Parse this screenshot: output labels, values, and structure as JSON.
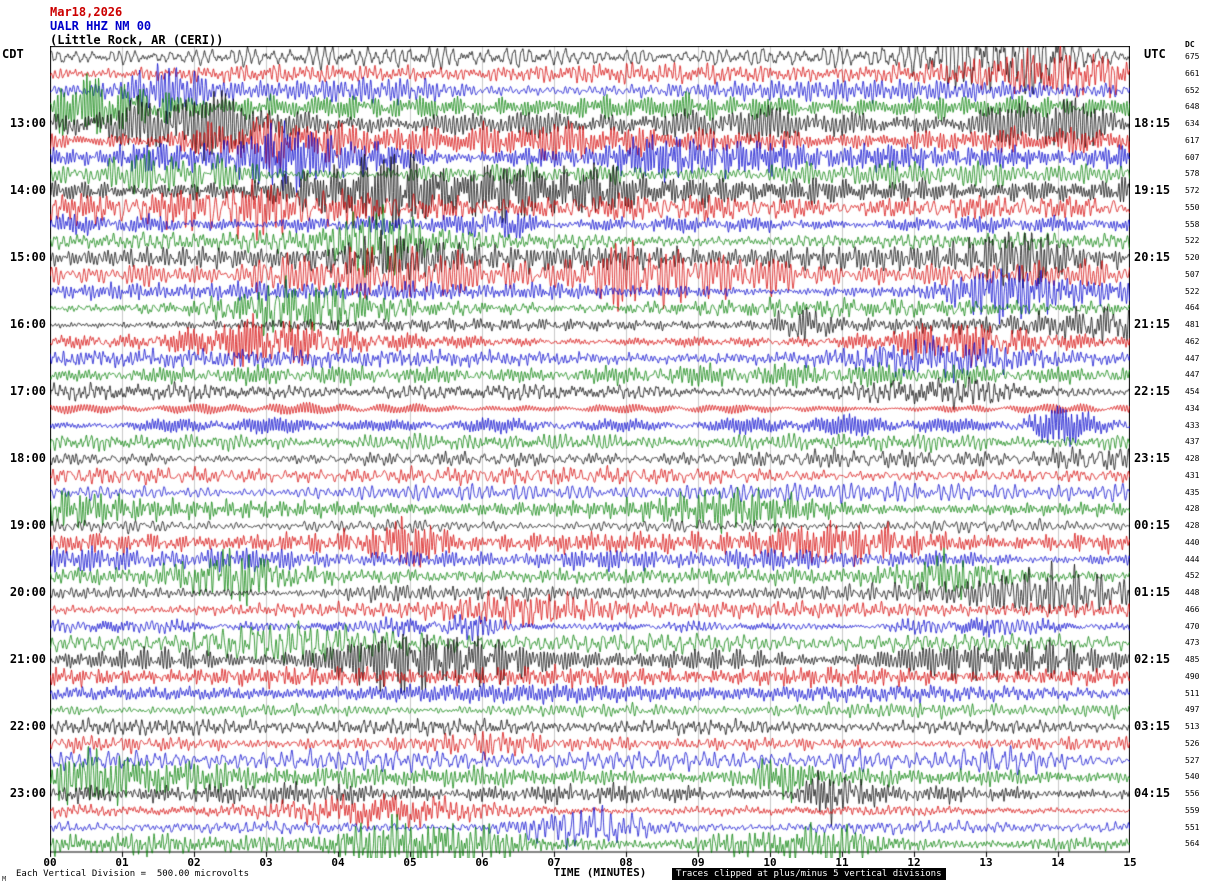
{
  "title": {
    "date": "Mar18,2026",
    "station": "UALR HHZ NM 00",
    "location": "(Little Rock, AR (CERI))",
    "date_color": "#cc0000",
    "station_color": "#0000cc",
    "location_color": "#000000"
  },
  "axes": {
    "left_timezone": "CDT",
    "right_timezone": "UTC",
    "dc_header": "DC",
    "xlabel": "TIME (MINUTES)",
    "x_ticks": [
      "00",
      "01",
      "02",
      "03",
      "04",
      "05",
      "06",
      "07",
      "08",
      "09",
      "10",
      "11",
      "12",
      "13",
      "14",
      "15"
    ]
  },
  "footer": {
    "scale_note": "Each Vertical Division =  500.00 microvolts",
    "clip_note": "Traces clipped at plus/minus 5 vertical divisions",
    "corner_mark": "M"
  },
  "chart_data": {
    "type": "line",
    "subtype": "helicorder seismogram (webicorder), 48 rows of 15 minutes each",
    "x_axis": {
      "label": "TIME (MINUTES)",
      "range_minutes": [
        0,
        15
      ],
      "tick_interval_minutes": 1
    },
    "minutes_per_row": 15,
    "microvolts_per_division": 500,
    "clip_divisions": 5,
    "row_color_cycle": [
      "#000000",
      "#d40000",
      "#0000cc",
      "#007f00"
    ],
    "grid_color": "#c8c8c8",
    "waveform": "continuous ambient seismic noise, ~1 vertical division amplitude with intermittent higher-amplitude bursts; regenerated procedurally per row",
    "rows": [
      {
        "left": "",
        "right": "",
        "dc": 675,
        "amp": 1.1
      },
      {
        "left": "",
        "right": "",
        "dc": 661,
        "amp": 1.2
      },
      {
        "left": "",
        "right": "",
        "dc": 652,
        "amp": 1.1
      },
      {
        "left": "",
        "right": "",
        "dc": 648,
        "amp": 1.2
      },
      {
        "left": "13:00",
        "right": "18:15",
        "dc": 634,
        "amp": 1.35
      },
      {
        "left": "",
        "right": "",
        "dc": 617,
        "amp": 1.3
      },
      {
        "left": "",
        "right": "",
        "dc": 607,
        "amp": 1.25
      },
      {
        "left": "",
        "right": "",
        "dc": 578,
        "amp": 1.3
      },
      {
        "left": "14:00",
        "right": "19:15",
        "dc": 572,
        "amp": 1.4
      },
      {
        "left": "",
        "right": "",
        "dc": 550,
        "amp": 1.35
      },
      {
        "left": "",
        "right": "",
        "dc": 558,
        "amp": 1.3
      },
      {
        "left": "",
        "right": "",
        "dc": 522,
        "amp": 1.25
      },
      {
        "left": "15:00",
        "right": "20:15",
        "dc": 520,
        "amp": 1.3
      },
      {
        "left": "",
        "right": "",
        "dc": 507,
        "amp": 1.2
      },
      {
        "left": "",
        "right": "",
        "dc": 522,
        "amp": 1.2
      },
      {
        "left": "",
        "right": "",
        "dc": 464,
        "amp": 1.1
      },
      {
        "left": "16:00",
        "right": "21:15",
        "dc": 481,
        "amp": 1.0
      },
      {
        "left": "",
        "right": "",
        "dc": 462,
        "amp": 0.95
      },
      {
        "left": "",
        "right": "",
        "dc": 447,
        "amp": 0.95
      },
      {
        "left": "",
        "right": "",
        "dc": 447,
        "amp": 1.0
      },
      {
        "left": "17:00",
        "right": "22:15",
        "dc": 454,
        "amp": 0.95
      },
      {
        "left": "",
        "right": "",
        "dc": 434,
        "amp": 0.9
      },
      {
        "left": "",
        "right": "",
        "dc": 433,
        "amp": 0.9
      },
      {
        "left": "",
        "right": "",
        "dc": 437,
        "amp": 0.9
      },
      {
        "left": "18:00",
        "right": "23:15",
        "dc": 428,
        "amp": 1.0
      },
      {
        "left": "",
        "right": "",
        "dc": 431,
        "amp": 0.9
      },
      {
        "left": "",
        "right": "",
        "dc": 435,
        "amp": 0.9
      },
      {
        "left": "",
        "right": "",
        "dc": 428,
        "amp": 0.9
      },
      {
        "left": "19:00",
        "right": "00:15",
        "dc": 428,
        "amp": 0.95
      },
      {
        "left": "",
        "right": "",
        "dc": 440,
        "amp": 0.85
      },
      {
        "left": "",
        "right": "",
        "dc": 444,
        "amp": 0.85
      },
      {
        "left": "",
        "right": "",
        "dc": 452,
        "amp": 0.9
      },
      {
        "left": "20:00",
        "right": "01:15",
        "dc": 448,
        "amp": 0.9
      },
      {
        "left": "",
        "right": "",
        "dc": 466,
        "amp": 0.85
      },
      {
        "left": "",
        "right": "",
        "dc": 470,
        "amp": 0.9
      },
      {
        "left": "",
        "right": "",
        "dc": 473,
        "amp": 0.9
      },
      {
        "left": "21:00",
        "right": "02:15",
        "dc": 485,
        "amp": 0.95
      },
      {
        "left": "",
        "right": "",
        "dc": 490,
        "amp": 0.9
      },
      {
        "left": "",
        "right": "",
        "dc": 511,
        "amp": 1.0
      },
      {
        "left": "",
        "right": "",
        "dc": 497,
        "amp": 0.95
      },
      {
        "left": "22:00",
        "right": "03:15",
        "dc": 513,
        "amp": 0.95
      },
      {
        "left": "",
        "right": "",
        "dc": 526,
        "amp": 0.9
      },
      {
        "left": "",
        "right": "",
        "dc": 527,
        "amp": 1.0
      },
      {
        "left": "",
        "right": "",
        "dc": 540,
        "amp": 0.95
      },
      {
        "left": "23:00",
        "right": "04:15",
        "dc": 556,
        "amp": 1.0
      },
      {
        "left": "",
        "right": "",
        "dc": 559,
        "amp": 0.95
      },
      {
        "left": "",
        "right": "",
        "dc": 551,
        "amp": 0.9
      },
      {
        "left": "",
        "right": "",
        "dc": 564,
        "amp": 0.9
      }
    ]
  }
}
